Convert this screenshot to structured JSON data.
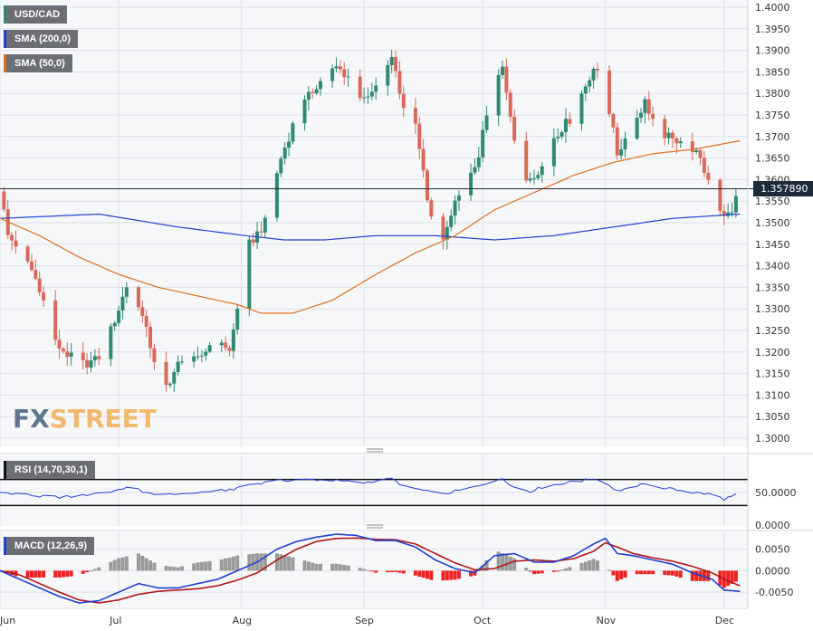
{
  "chart_data": {
    "type": "candlestick",
    "symbol": "USD/CAD",
    "last_price": "1.357890",
    "price_axis": {
      "min": 1.3,
      "max": 1.4,
      "ticks": [
        "1.4000",
        "1.3950",
        "1.3900",
        "1.3850",
        "1.3800",
        "1.3750",
        "1.3700",
        "1.3650",
        "1.3600",
        "1.3550",
        "1.3500",
        "1.3450",
        "1.3400",
        "1.3350",
        "1.3300",
        "1.3250",
        "1.3200",
        "1.3150",
        "1.3100",
        "1.3050",
        "1.3000"
      ]
    },
    "months": [
      {
        "label": "Jun",
        "day": 0
      },
      {
        "label": "Jul",
        "day": 30
      },
      {
        "label": "Aug",
        "day": 61
      },
      {
        "label": "Sep",
        "day": 92
      },
      {
        "label": "Oct",
        "day": 122
      },
      {
        "label": "Nov",
        "day": 153
      },
      {
        "label": "Dec",
        "day": 183
      }
    ],
    "price_anchors": [
      [
        0,
        1.358
      ],
      [
        2,
        1.347
      ],
      [
        6,
        1.343
      ],
      [
        10,
        1.335
      ],
      [
        14,
        1.322
      ],
      [
        20,
        1.317
      ],
      [
        24,
        1.318
      ],
      [
        26,
        1.32
      ],
      [
        30,
        1.33
      ],
      [
        33,
        1.338
      ],
      [
        36,
        1.328
      ],
      [
        40,
        1.315
      ],
      [
        42,
        1.312
      ],
      [
        45,
        1.317
      ],
      [
        50,
        1.318
      ],
      [
        55,
        1.324
      ],
      [
        58,
        1.32
      ],
      [
        60,
        1.33
      ],
      [
        63,
        1.345
      ],
      [
        67,
        1.35
      ],
      [
        71,
        1.365
      ],
      [
        75,
        1.375
      ],
      [
        80,
        1.382
      ],
      [
        85,
        1.386
      ],
      [
        88,
        1.384
      ],
      [
        92,
        1.378
      ],
      [
        96,
        1.382
      ],
      [
        99,
        1.389
      ],
      [
        102,
        1.377
      ],
      [
        105,
        1.372
      ],
      [
        109,
        1.351
      ],
      [
        112,
        1.346
      ],
      [
        115,
        1.354
      ],
      [
        118,
        1.358
      ],
      [
        121,
        1.366
      ],
      [
        124,
        1.379
      ],
      [
        127,
        1.386
      ],
      [
        130,
        1.37
      ],
      [
        133,
        1.36
      ],
      [
        137,
        1.363
      ],
      [
        140,
        1.37
      ],
      [
        144,
        1.374
      ],
      [
        147,
        1.38
      ],
      [
        150,
        1.386
      ],
      [
        153,
        1.381
      ],
      [
        156,
        1.366
      ],
      [
        160,
        1.373
      ],
      [
        163,
        1.378
      ],
      [
        166,
        1.372
      ],
      [
        170,
        1.369
      ],
      [
        173,
        1.37
      ],
      [
        176,
        1.366
      ],
      [
        178,
        1.362
      ],
      [
        180,
        1.358
      ],
      [
        183,
        1.351
      ],
      [
        185,
        1.353
      ],
      [
        187,
        1.358
      ]
    ],
    "sma200_anchors": [
      [
        0,
        1.351
      ],
      [
        25,
        1.352
      ],
      [
        45,
        1.349
      ],
      [
        62,
        1.347
      ],
      [
        72,
        1.346
      ],
      [
        82,
        1.346
      ],
      [
        95,
        1.347
      ],
      [
        110,
        1.347
      ],
      [
        125,
        1.346
      ],
      [
        140,
        1.347
      ],
      [
        155,
        1.349
      ],
      [
        170,
        1.351
      ],
      [
        187,
        1.352
      ]
    ],
    "sma50_anchors": [
      [
        0,
        1.351
      ],
      [
        10,
        1.347
      ],
      [
        20,
        1.342
      ],
      [
        30,
        1.338
      ],
      [
        40,
        1.335
      ],
      [
        50,
        1.333
      ],
      [
        60,
        1.331
      ],
      [
        66,
        1.329
      ],
      [
        74,
        1.329
      ],
      [
        84,
        1.332
      ],
      [
        95,
        1.338
      ],
      [
        105,
        1.343
      ],
      [
        115,
        1.347
      ],
      [
        125,
        1.353
      ],
      [
        135,
        1.357
      ],
      [
        145,
        1.361
      ],
      [
        155,
        1.364
      ],
      [
        165,
        1.366
      ],
      [
        175,
        1.367
      ],
      [
        187,
        1.369
      ]
    ],
    "indicators": {
      "sma200": {
        "name": "SMA (200,0)",
        "color": "#2040d0"
      },
      "sma50": {
        "name": "SMA (50,0)",
        "color": "#e07020"
      }
    },
    "rsi": {
      "name": "RSI (14,70,30,1)",
      "levels": [
        70,
        30
      ],
      "axis_ticks": [
        "50.0000",
        "0.0000"
      ],
      "anchors": [
        [
          0,
          50
        ],
        [
          5,
          48
        ],
        [
          10,
          44
        ],
        [
          15,
          43
        ],
        [
          20,
          44
        ],
        [
          25,
          50
        ],
        [
          30,
          53
        ],
        [
          33,
          62
        ],
        [
          36,
          52
        ],
        [
          40,
          44
        ],
        [
          45,
          48
        ],
        [
          50,
          50
        ],
        [
          55,
          52
        ],
        [
          60,
          56
        ],
        [
          63,
          62
        ],
        [
          70,
          68
        ],
        [
          75,
          69
        ],
        [
          80,
          70
        ],
        [
          85,
          68
        ],
        [
          92,
          65
        ],
        [
          95,
          68
        ],
        [
          99,
          71
        ],
        [
          102,
          60
        ],
        [
          105,
          56
        ],
        [
          109,
          50
        ],
        [
          112,
          47
        ],
        [
          115,
          52
        ],
        [
          118,
          55
        ],
        [
          122,
          63
        ],
        [
          125,
          68
        ],
        [
          127,
          72
        ],
        [
          130,
          58
        ],
        [
          134,
          52
        ],
        [
          138,
          60
        ],
        [
          142,
          64
        ],
        [
          146,
          67
        ],
        [
          150,
          71
        ],
        [
          153,
          66
        ],
        [
          156,
          52
        ],
        [
          160,
          60
        ],
        [
          164,
          63
        ],
        [
          167,
          58
        ],
        [
          170,
          55
        ],
        [
          175,
          50
        ],
        [
          180,
          47
        ],
        [
          183,
          40
        ],
        [
          185,
          44
        ],
        [
          187,
          49
        ]
      ],
      "color": "#2040d0"
    },
    "macd": {
      "name": "MACD (12,26,9)",
      "axis_ticks": [
        "0.0050",
        "0.0000",
        "-0.0050"
      ],
      "macd_anchors": [
        [
          0,
          0.0
        ],
        [
          5,
          -0.002
        ],
        [
          10,
          -0.004
        ],
        [
          15,
          -0.006
        ],
        [
          20,
          -0.0075
        ],
        [
          25,
          -0.007
        ],
        [
          30,
          -0.005
        ],
        [
          35,
          -0.003
        ],
        [
          40,
          -0.004
        ],
        [
          45,
          -0.004
        ],
        [
          50,
          -0.003
        ],
        [
          55,
          -0.002
        ],
        [
          60,
          0.0
        ],
        [
          65,
          0.002
        ],
        [
          70,
          0.005
        ],
        [
          75,
          0.0068
        ],
        [
          80,
          0.0078
        ],
        [
          85,
          0.0085
        ],
        [
          90,
          0.0082
        ],
        [
          95,
          0.007
        ],
        [
          100,
          0.007
        ],
        [
          105,
          0.0055
        ],
        [
          110,
          0.0025
        ],
        [
          115,
          0.0005
        ],
        [
          120,
          -0.0005
        ],
        [
          125,
          0.0035
        ],
        [
          130,
          0.004
        ],
        [
          135,
          0.002
        ],
        [
          140,
          0.002
        ],
        [
          145,
          0.0035
        ],
        [
          150,
          0.0062
        ],
        [
          153,
          0.0075
        ],
        [
          156,
          0.004
        ],
        [
          160,
          0.0035
        ],
        [
          165,
          0.0025
        ],
        [
          170,
          0.0015
        ],
        [
          175,
          -0.0005
        ],
        [
          180,
          -0.002
        ],
        [
          183,
          -0.0045
        ],
        [
          187,
          -0.0048
        ]
      ],
      "signal_anchors": [
        [
          0,
          0.0
        ],
        [
          5,
          -0.001
        ],
        [
          10,
          -0.003
        ],
        [
          15,
          -0.005
        ],
        [
          20,
          -0.0068
        ],
        [
          25,
          -0.0075
        ],
        [
          30,
          -0.0068
        ],
        [
          35,
          -0.0055
        ],
        [
          40,
          -0.0048
        ],
        [
          45,
          -0.0045
        ],
        [
          50,
          -0.0042
        ],
        [
          55,
          -0.0035
        ],
        [
          60,
          -0.0022
        ],
        [
          65,
          -0.0005
        ],
        [
          70,
          0.0025
        ],
        [
          75,
          0.005
        ],
        [
          80,
          0.0068
        ],
        [
          85,
          0.0075
        ],
        [
          90,
          0.0076
        ],
        [
          95,
          0.0073
        ],
        [
          100,
          0.0072
        ],
        [
          105,
          0.0062
        ],
        [
          110,
          0.004
        ],
        [
          115,
          0.0018
        ],
        [
          120,
          0.0002
        ],
        [
          125,
          0.0005
        ],
        [
          130,
          0.0022
        ],
        [
          135,
          0.0025
        ],
        [
          140,
          0.0022
        ],
        [
          145,
          0.0028
        ],
        [
          150,
          0.0045
        ],
        [
          153,
          0.0065
        ],
        [
          156,
          0.0055
        ],
        [
          160,
          0.004
        ],
        [
          165,
          0.003
        ],
        [
          170,
          0.0022
        ],
        [
          175,
          0.001
        ],
        [
          180,
          -0.0005
        ],
        [
          183,
          -0.002
        ],
        [
          187,
          -0.0035
        ]
      ],
      "macd_color": "#2040d0",
      "signal_color": "#b01818",
      "hist_pos_color": "#9a9a9a",
      "hist_neg_color": "#ee2222"
    },
    "colors": {
      "up": "#2e8a72",
      "down": "#d96a5a",
      "last_line": "#1c2b3a"
    },
    "grid": true
  },
  "watermark": {
    "part1": "FX",
    "part2": "STREET"
  }
}
